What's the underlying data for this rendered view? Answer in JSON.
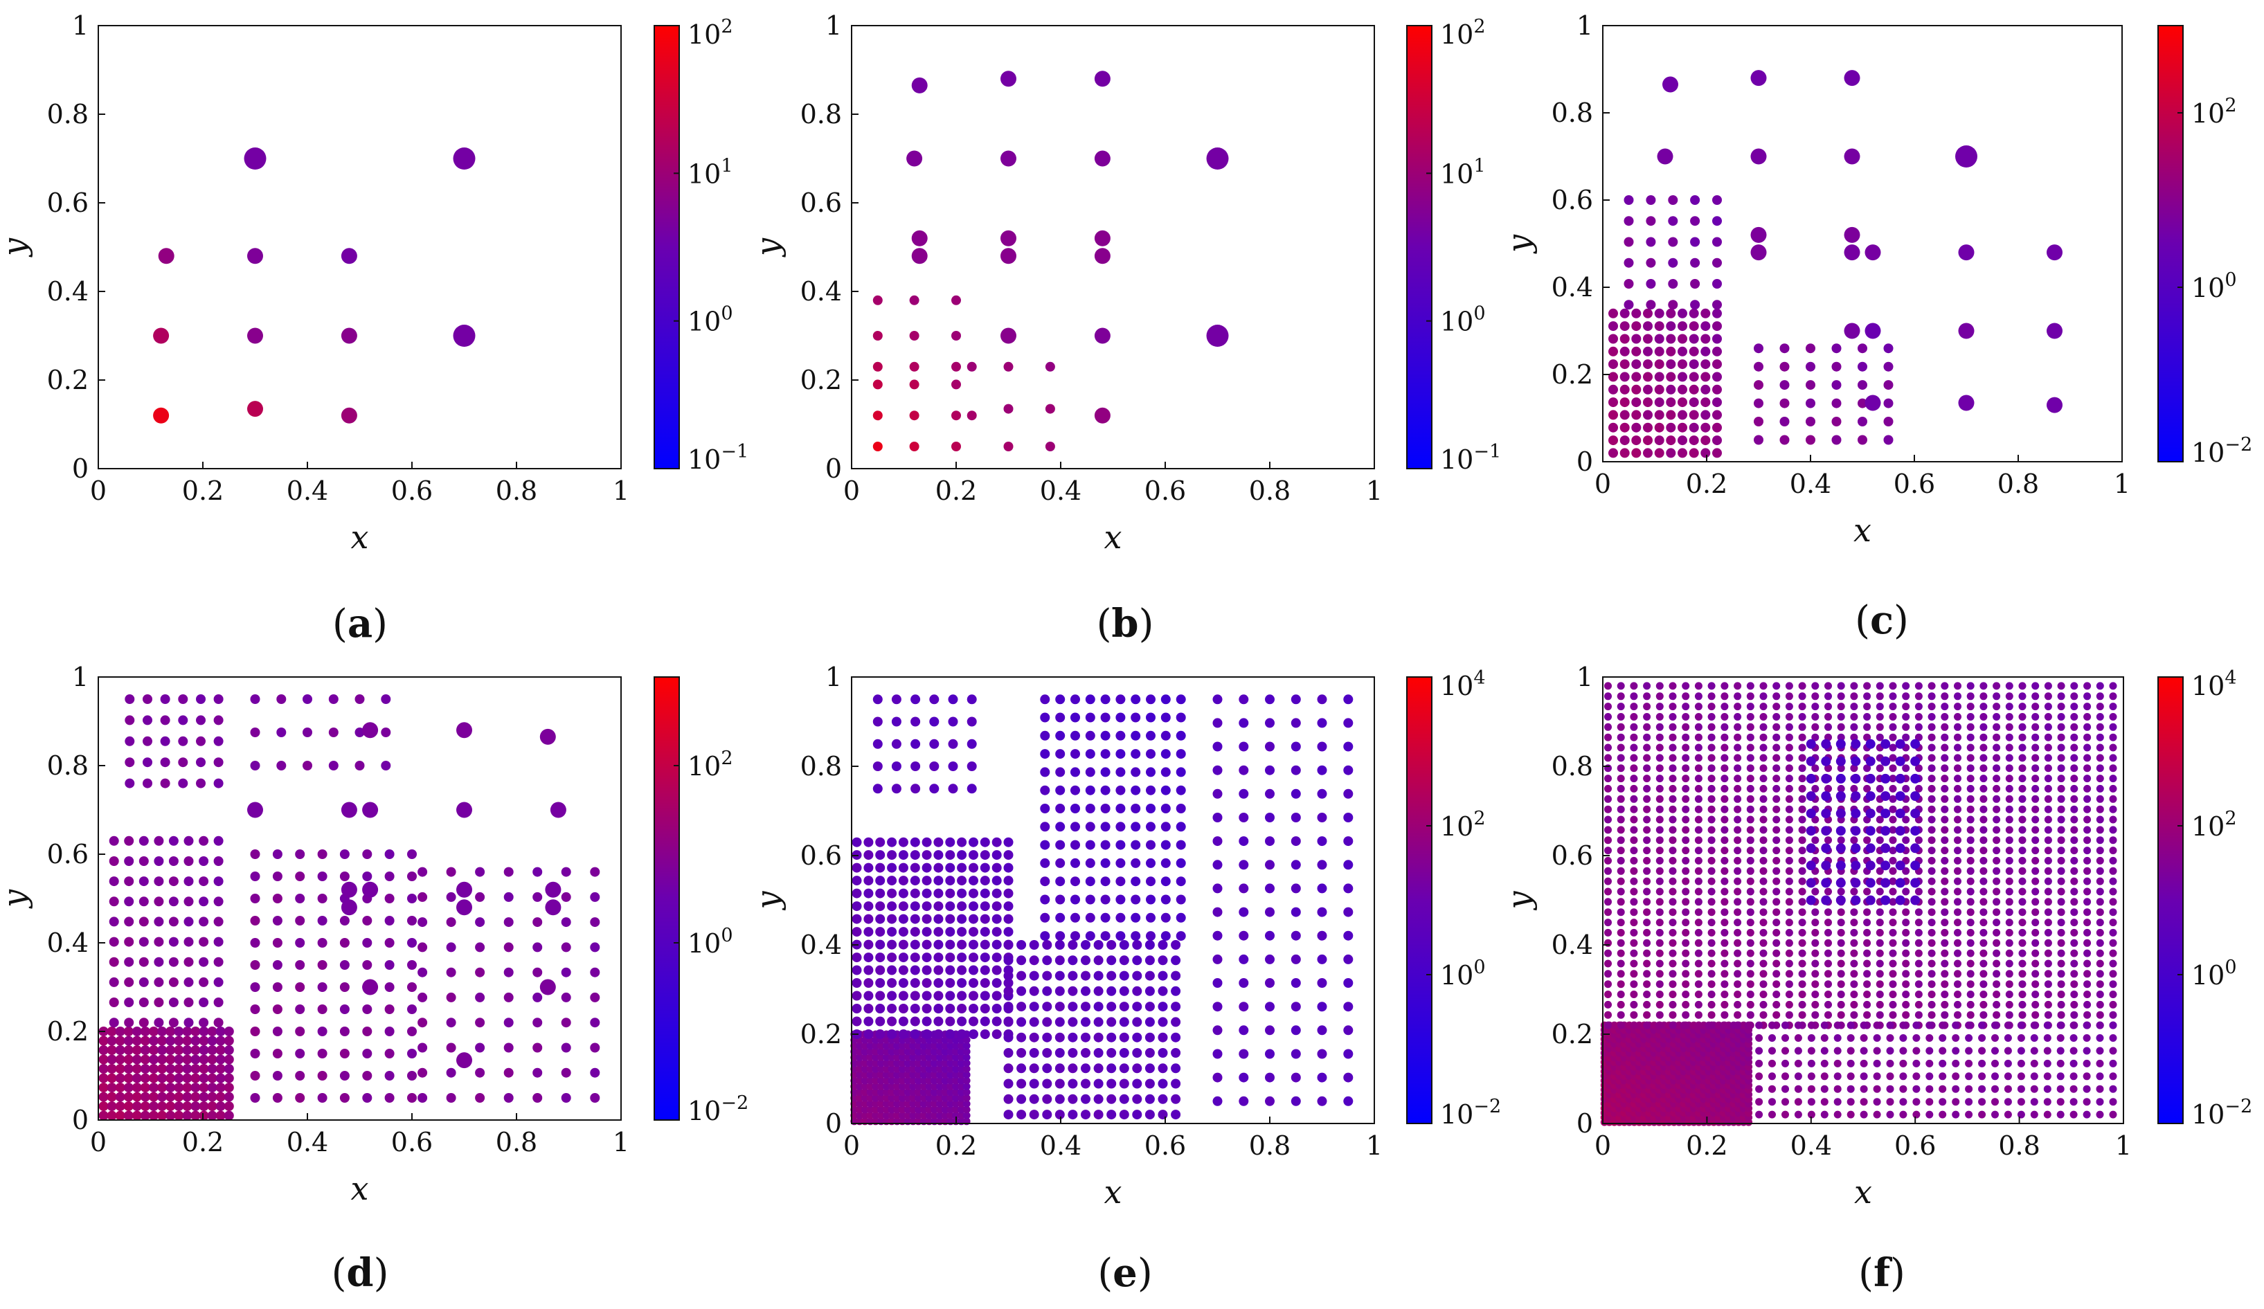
{
  "figure": {
    "subplot_labels": [
      "(a)",
      "(b)",
      "(c)",
      "(d)",
      "(e)",
      "(f)"
    ]
  },
  "colors": {
    "low": "#0000ff",
    "mid": "#6a00b0",
    "high": "#ff0000",
    "axis": "#111111"
  },
  "chart_data": [
    {
      "type": "scatter",
      "id": "a",
      "label": "(a)",
      "xlabel": "x",
      "ylabel": "y",
      "xlim": [
        0,
        1
      ],
      "ylim": [
        0,
        1
      ],
      "xticks": [
        "0",
        "0.2",
        "0.4",
        "0.6",
        "0.8",
        "1"
      ],
      "yticks": [
        "0",
        "0.2",
        "0.4",
        "0.6",
        "0.8",
        "1"
      ],
      "colorbar": {
        "min_exp": -1,
        "max_exp": 2,
        "ticks": [
          {
            "base": "10",
            "exp": "2"
          },
          {
            "base": "10",
            "exp": "1"
          },
          {
            "base": "10",
            "exp": "0"
          },
          {
            "base": "10",
            "exp": "−1"
          }
        ]
      },
      "points": [
        {
          "x": 0.3,
          "y": 0.7,
          "c": 0.6,
          "s": 3
        },
        {
          "x": 0.7,
          "y": 0.7,
          "c": 0.6,
          "s": 3
        },
        {
          "x": 0.7,
          "y": 0.3,
          "c": 0.6,
          "s": 3
        },
        {
          "x": 0.13,
          "y": 0.48,
          "c": 0.9,
          "s": 2
        },
        {
          "x": 0.3,
          "y": 0.48,
          "c": 0.7,
          "s": 2
        },
        {
          "x": 0.48,
          "y": 0.48,
          "c": 0.6,
          "s": 2
        },
        {
          "x": 0.12,
          "y": 0.3,
          "c": 1.2,
          "s": 2
        },
        {
          "x": 0.3,
          "y": 0.3,
          "c": 0.8,
          "s": 2
        },
        {
          "x": 0.48,
          "y": 0.3,
          "c": 0.8,
          "s": 2
        },
        {
          "x": 0.12,
          "y": 0.12,
          "c": 1.8,
          "s": 2
        },
        {
          "x": 0.3,
          "y": 0.135,
          "c": 1.3,
          "s": 2
        },
        {
          "x": 0.48,
          "y": 0.12,
          "c": 1.0,
          "s": 2
        }
      ]
    },
    {
      "type": "scatter",
      "id": "b",
      "label": "(b)",
      "xlabel": "x",
      "ylabel": "y",
      "xlim": [
        0,
        1
      ],
      "ylim": [
        0,
        1
      ],
      "xticks": [
        "0",
        "0.2",
        "0.4",
        "0.6",
        "0.8",
        "1"
      ],
      "yticks": [
        "0",
        "0.2",
        "0.4",
        "0.6",
        "0.8",
        "1"
      ],
      "colorbar": {
        "min_exp": -1,
        "max_exp": 2,
        "ticks": [
          {
            "base": "10",
            "exp": "2"
          },
          {
            "base": "10",
            "exp": "1"
          },
          {
            "base": "10",
            "exp": "0"
          },
          {
            "base": "10",
            "exp": "−1"
          }
        ]
      },
      "points": [
        {
          "x": 0.13,
          "y": 0.865,
          "c": 0.6,
          "s": 2
        },
        {
          "x": 0.3,
          "y": 0.88,
          "c": 0.6,
          "s": 2
        },
        {
          "x": 0.48,
          "y": 0.88,
          "c": 0.6,
          "s": 2
        },
        {
          "x": 0.12,
          "y": 0.7,
          "c": 0.7,
          "s": 2
        },
        {
          "x": 0.3,
          "y": 0.7,
          "c": 0.7,
          "s": 2
        },
        {
          "x": 0.48,
          "y": 0.7,
          "c": 0.7,
          "s": 2
        },
        {
          "x": 0.7,
          "y": 0.7,
          "c": 0.6,
          "s": 3
        },
        {
          "x": 0.13,
          "y": 0.52,
          "c": 0.8,
          "s": 2
        },
        {
          "x": 0.3,
          "y": 0.52,
          "c": 0.8,
          "s": 2
        },
        {
          "x": 0.48,
          "y": 0.52,
          "c": 0.8,
          "s": 2
        },
        {
          "x": 0.13,
          "y": 0.48,
          "c": 0.8,
          "s": 2
        },
        {
          "x": 0.3,
          "y": 0.48,
          "c": 0.8,
          "s": 2
        },
        {
          "x": 0.48,
          "y": 0.48,
          "c": 0.8,
          "s": 2
        },
        {
          "x": 0.3,
          "y": 0.3,
          "c": 0.8,
          "s": 2
        },
        {
          "x": 0.48,
          "y": 0.3,
          "c": 0.7,
          "s": 2
        },
        {
          "x": 0.7,
          "y": 0.3,
          "c": 0.6,
          "s": 3
        },
        {
          "x": 0.48,
          "y": 0.12,
          "c": 0.9,
          "s": 2
        },
        {
          "x": 0.05,
          "y": 0.38,
          "c": 1.1,
          "s": 1
        },
        {
          "x": 0.05,
          "y": 0.3,
          "c": 1.2,
          "s": 1
        },
        {
          "x": 0.05,
          "y": 0.23,
          "c": 1.3,
          "s": 1
        },
        {
          "x": 0.05,
          "y": 0.19,
          "c": 1.4,
          "s": 1
        },
        {
          "x": 0.05,
          "y": 0.12,
          "c": 1.6,
          "s": 1
        },
        {
          "x": 0.05,
          "y": 0.05,
          "c": 1.8,
          "s": 1
        },
        {
          "x": 0.12,
          "y": 0.38,
          "c": 1.0,
          "s": 1
        },
        {
          "x": 0.12,
          "y": 0.3,
          "c": 1.1,
          "s": 1
        },
        {
          "x": 0.12,
          "y": 0.23,
          "c": 1.2,
          "s": 1
        },
        {
          "x": 0.12,
          "y": 0.19,
          "c": 1.3,
          "s": 1
        },
        {
          "x": 0.12,
          "y": 0.12,
          "c": 1.4,
          "s": 1
        },
        {
          "x": 0.12,
          "y": 0.05,
          "c": 1.5,
          "s": 1
        },
        {
          "x": 0.2,
          "y": 0.38,
          "c": 1.0,
          "s": 1
        },
        {
          "x": 0.2,
          "y": 0.3,
          "c": 1.0,
          "s": 1
        },
        {
          "x": 0.2,
          "y": 0.23,
          "c": 1.1,
          "s": 1
        },
        {
          "x": 0.2,
          "y": 0.19,
          "c": 1.1,
          "s": 1
        },
        {
          "x": 0.2,
          "y": 0.12,
          "c": 1.2,
          "s": 1
        },
        {
          "x": 0.2,
          "y": 0.05,
          "c": 1.3,
          "s": 1
        },
        {
          "x": 0.23,
          "y": 0.23,
          "c": 1.0,
          "s": 1
        },
        {
          "x": 0.23,
          "y": 0.12,
          "c": 1.1,
          "s": 1
        },
        {
          "x": 0.3,
          "y": 0.23,
          "c": 1.0,
          "s": 1
        },
        {
          "x": 0.3,
          "y": 0.135,
          "c": 1.0,
          "s": 1
        },
        {
          "x": 0.3,
          "y": 0.05,
          "c": 1.1,
          "s": 1
        },
        {
          "x": 0.38,
          "y": 0.23,
          "c": 0.9,
          "s": 1
        },
        {
          "x": 0.38,
          "y": 0.135,
          "c": 1.0,
          "s": 1
        },
        {
          "x": 0.38,
          "y": 0.05,
          "c": 1.0,
          "s": 1
        }
      ]
    },
    {
      "type": "scatter",
      "id": "c",
      "label": "(c)",
      "xlabel": "x",
      "ylabel": "y",
      "xlim": [
        0,
        1
      ],
      "ylim": [
        0,
        1
      ],
      "xticks": [
        "0",
        "0.2",
        "0.4",
        "0.6",
        "0.8",
        "1"
      ],
      "yticks": [
        "0",
        "0.2",
        "0.4",
        "0.6",
        "0.8",
        "1"
      ],
      "colorbar": {
        "min_exp": -2,
        "max_exp": 3,
        "ticks": [
          {
            "base": "10",
            "exp": "2"
          },
          {
            "base": "10",
            "exp": "0"
          },
          {
            "base": "10",
            "exp": "−2"
          }
        ]
      },
      "points": [
        {
          "x": 0.13,
          "y": 0.865,
          "c": 0.6,
          "s": 2
        },
        {
          "x": 0.3,
          "y": 0.88,
          "c": 0.6,
          "s": 2
        },
        {
          "x": 0.48,
          "y": 0.88,
          "c": 0.6,
          "s": 2
        },
        {
          "x": 0.12,
          "y": 0.7,
          "c": 0.7,
          "s": 2
        },
        {
          "x": 0.3,
          "y": 0.7,
          "c": 0.7,
          "s": 2
        },
        {
          "x": 0.48,
          "y": 0.7,
          "c": 0.7,
          "s": 2
        },
        {
          "x": 0.7,
          "y": 0.7,
          "c": 0.6,
          "s": 3
        },
        {
          "x": 0.3,
          "y": 0.52,
          "c": 0.8,
          "s": 2
        },
        {
          "x": 0.48,
          "y": 0.52,
          "c": 0.8,
          "s": 2
        },
        {
          "x": 0.3,
          "y": 0.48,
          "c": 0.8,
          "s": 2
        },
        {
          "x": 0.48,
          "y": 0.48,
          "c": 0.7,
          "s": 2
        },
        {
          "x": 0.52,
          "y": 0.48,
          "c": 0.7,
          "s": 2
        },
        {
          "x": 0.7,
          "y": 0.48,
          "c": 0.6,
          "s": 2
        },
        {
          "x": 0.87,
          "y": 0.48,
          "c": 0.6,
          "s": 2
        },
        {
          "x": 0.48,
          "y": 0.3,
          "c": 0.7,
          "s": 2
        },
        {
          "x": 0.52,
          "y": 0.3,
          "c": 0.5,
          "s": 2
        },
        {
          "x": 0.7,
          "y": 0.3,
          "c": 0.7,
          "s": 2
        },
        {
          "x": 0.87,
          "y": 0.3,
          "c": 0.6,
          "s": 2
        },
        {
          "x": 0.52,
          "y": 0.135,
          "c": 0.6,
          "s": 2
        },
        {
          "x": 0.7,
          "y": 0.135,
          "c": 0.6,
          "s": 2
        },
        {
          "x": 0.87,
          "y": 0.13,
          "c": 0.6,
          "s": 2
        }
      ],
      "grids": [
        {
          "x0": 0.02,
          "x1": 0.22,
          "nx": 10,
          "y0": 0.02,
          "y1": 0.34,
          "ny": 12,
          "c0": 1.4,
          "c1": 0.9
        },
        {
          "x0": 0.05,
          "x1": 0.22,
          "nx": 5,
          "y0": 0.36,
          "y1": 0.6,
          "ny": 6,
          "c0": 0.9,
          "c1": 0.6
        },
        {
          "x0": 0.3,
          "x1": 0.55,
          "nx": 6,
          "y0": 0.05,
          "y1": 0.26,
          "ny": 6,
          "c0": 1.0,
          "c1": 0.7
        }
      ]
    },
    {
      "type": "scatter",
      "id": "d",
      "label": "(d)",
      "xlabel": "x",
      "ylabel": "y",
      "xlim": [
        0,
        1
      ],
      "ylim": [
        0,
        1
      ],
      "xticks": [
        "0",
        "0.2",
        "0.4",
        "0.6",
        "0.8",
        "1"
      ],
      "yticks": [
        "0",
        "0.2",
        "0.4",
        "0.6",
        "0.8",
        "1"
      ],
      "colorbar": {
        "min_exp": -2,
        "max_exp": 3,
        "ticks": [
          {
            "base": "10",
            "exp": "2"
          },
          {
            "base": "10",
            "exp": "0"
          },
          {
            "base": "10",
            "exp": "−2"
          }
        ]
      },
      "points": [
        {
          "x": 0.3,
          "y": 0.7,
          "c": 0.7,
          "s": 2
        },
        {
          "x": 0.48,
          "y": 0.7,
          "c": 0.7,
          "s": 2
        },
        {
          "x": 0.52,
          "y": 0.7,
          "c": 0.7,
          "s": 2
        },
        {
          "x": 0.7,
          "y": 0.7,
          "c": 0.7,
          "s": 2
        },
        {
          "x": 0.88,
          "y": 0.7,
          "c": 0.7,
          "s": 2
        },
        {
          "x": 0.52,
          "y": 0.88,
          "c": 0.8,
          "s": 2
        },
        {
          "x": 0.7,
          "y": 0.88,
          "c": 0.8,
          "s": 2
        },
        {
          "x": 0.86,
          "y": 0.865,
          "c": 0.8,
          "s": 2
        },
        {
          "x": 0.48,
          "y": 0.52,
          "c": 0.7,
          "s": 2
        },
        {
          "x": 0.52,
          "y": 0.52,
          "c": 0.7,
          "s": 2
        },
        {
          "x": 0.7,
          "y": 0.52,
          "c": 0.7,
          "s": 2
        },
        {
          "x": 0.87,
          "y": 0.52,
          "c": 0.7,
          "s": 2
        },
        {
          "x": 0.48,
          "y": 0.48,
          "c": 0.7,
          "s": 2
        },
        {
          "x": 0.7,
          "y": 0.48,
          "c": 0.7,
          "s": 2
        },
        {
          "x": 0.87,
          "y": 0.48,
          "c": 0.7,
          "s": 2
        },
        {
          "x": 0.52,
          "y": 0.3,
          "c": 0.8,
          "s": 2
        },
        {
          "x": 0.86,
          "y": 0.3,
          "c": 0.8,
          "s": 2
        },
        {
          "x": 0.7,
          "y": 0.135,
          "c": 0.8,
          "s": 2
        }
      ],
      "grids": [
        {
          "x0": 0.01,
          "x1": 0.25,
          "nx": 16,
          "y0": 0.01,
          "y1": 0.2,
          "ny": 10,
          "c0": 1.6,
          "c1": 1.0
        },
        {
          "x0": 0.03,
          "x1": 0.23,
          "nx": 8,
          "y0": 0.22,
          "y1": 0.63,
          "ny": 10,
          "c0": 1.0,
          "c1": 0.7
        },
        {
          "x0": 0.06,
          "x1": 0.23,
          "nx": 6,
          "y0": 0.76,
          "y1": 0.95,
          "ny": 5,
          "c0": 0.8,
          "c1": 0.7
        },
        {
          "x0": 0.3,
          "x1": 0.6,
          "nx": 8,
          "y0": 0.05,
          "y1": 0.6,
          "ny": 12,
          "c0": 1.0,
          "c1": 0.7
        },
        {
          "x0": 0.3,
          "x1": 0.55,
          "nx": 6,
          "y0": 0.8,
          "y1": 0.95,
          "ny": 3,
          "c0": 0.8,
          "c1": 0.7
        },
        {
          "x0": 0.62,
          "x1": 0.95,
          "nx": 7,
          "y0": 0.05,
          "y1": 0.56,
          "ny": 10,
          "c0": 0.9,
          "c1": 0.7
        }
      ]
    },
    {
      "type": "scatter",
      "id": "e",
      "label": "(e)",
      "xlabel": "x",
      "ylabel": "y",
      "xlim": [
        0,
        1
      ],
      "ylim": [
        0,
        1
      ],
      "xticks": [
        "0",
        "0.2",
        "0.4",
        "0.6",
        "0.8",
        "1"
      ],
      "yticks": [
        "0",
        "0.2",
        "0.4",
        "0.6",
        "0.8",
        "1"
      ],
      "colorbar": {
        "min_exp": -2,
        "max_exp": 4,
        "ticks": [
          {
            "base": "10",
            "exp": "4"
          },
          {
            "base": "10",
            "exp": "2"
          },
          {
            "base": "10",
            "exp": "0"
          },
          {
            "base": "10",
            "exp": "−2"
          }
        ]
      },
      "points": [],
      "grids": [
        {
          "x0": 0.005,
          "x1": 0.22,
          "nx": 22,
          "y0": 0.005,
          "y1": 0.2,
          "ny": 16,
          "c0": 1.8,
          "c1": 0.9
        },
        {
          "x0": 0.01,
          "x1": 0.3,
          "nx": 14,
          "y0": 0.2,
          "y1": 0.63,
          "ny": 16,
          "c0": 0.9,
          "c1": 0.5
        },
        {
          "x0": 0.05,
          "x1": 0.23,
          "nx": 6,
          "y0": 0.75,
          "y1": 0.95,
          "ny": 5,
          "c0": 0.6,
          "c1": 0.4
        },
        {
          "x0": 0.3,
          "x1": 0.62,
          "nx": 14,
          "y0": 0.02,
          "y1": 0.4,
          "ny": 12,
          "c0": 0.8,
          "c1": 0.4
        },
        {
          "x0": 0.37,
          "x1": 0.63,
          "nx": 10,
          "y0": 0.42,
          "y1": 0.95,
          "ny": 14,
          "c0": 0.4,
          "c1": 0.0
        },
        {
          "x0": 0.7,
          "x1": 0.95,
          "nx": 6,
          "y0": 0.05,
          "y1": 0.95,
          "ny": 18,
          "c0": 0.6,
          "c1": 0.3
        }
      ]
    },
    {
      "type": "scatter",
      "id": "f",
      "label": "(f)",
      "xlabel": "x",
      "ylabel": "y",
      "xlim": [
        0,
        1
      ],
      "ylim": [
        0,
        1
      ],
      "xticks": [
        "0",
        "0.2",
        "0.4",
        "0.6",
        "0.8",
        "1"
      ],
      "yticks": [
        "0",
        "0.2",
        "0.4",
        "0.6",
        "0.8",
        "1"
      ],
      "colorbar": {
        "min_exp": -2,
        "max_exp": 4,
        "ticks": [
          {
            "base": "10",
            "exp": "4"
          },
          {
            "base": "10",
            "exp": "2"
          },
          {
            "base": "10",
            "exp": "0"
          },
          {
            "base": "10",
            "exp": "−2"
          }
        ]
      },
      "points": [],
      "grids": [
        {
          "x0": 0.003,
          "x1": 0.28,
          "nx": 30,
          "y0": 0.003,
          "y1": 0.22,
          "ny": 22,
          "c0": 2.3,
          "c1": 1.6
        },
        {
          "x0": 0.01,
          "x1": 0.98,
          "nx": 40,
          "y0": 0.22,
          "y1": 0.98,
          "ny": 34,
          "c0": 1.7,
          "c1": 1.2
        },
        {
          "x0": 0.3,
          "x1": 0.98,
          "nx": 28,
          "y0": 0.02,
          "y1": 0.22,
          "ny": 8,
          "c0": 1.6,
          "c1": 1.2
        },
        {
          "x0": 0.4,
          "x1": 0.6,
          "nx": 8,
          "y0": 0.5,
          "y1": 0.85,
          "ny": 10,
          "c0": 0.3,
          "c1": 0.0
        }
      ]
    }
  ]
}
